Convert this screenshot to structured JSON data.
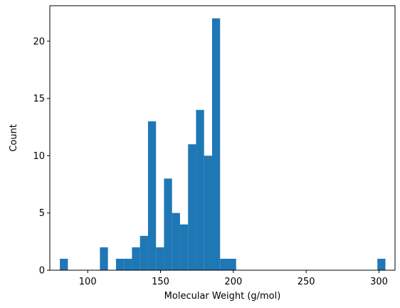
{
  "chart_data": {
    "type": "bar",
    "subtype": "histogram",
    "xlabel": "Molecular Weight (g/mol)",
    "ylabel": "Count",
    "xlim": [
      74,
      311
    ],
    "ylim": [
      0,
      23.1
    ],
    "xticks": [
      100,
      150,
      200,
      250,
      300
    ],
    "yticks": [
      0,
      5,
      10,
      15,
      20
    ],
    "grid": false,
    "color": "#1f77b4",
    "bins": [
      {
        "x0": 80.9,
        "x1": 86.4,
        "count": 1
      },
      {
        "x0": 86.4,
        "x1": 91.9,
        "count": 0
      },
      {
        "x0": 91.9,
        "x1": 97.4,
        "count": 0
      },
      {
        "x0": 97.4,
        "x1": 102.9,
        "count": 0
      },
      {
        "x0": 102.9,
        "x1": 108.4,
        "count": 0
      },
      {
        "x0": 108.4,
        "x1": 113.9,
        "count": 2
      },
      {
        "x0": 113.9,
        "x1": 119.4,
        "count": 0
      },
      {
        "x0": 119.4,
        "x1": 124.9,
        "count": 1
      },
      {
        "x0": 124.9,
        "x1": 130.4,
        "count": 1
      },
      {
        "x0": 130.4,
        "x1": 135.9,
        "count": 2
      },
      {
        "x0": 135.9,
        "x1": 141.4,
        "count": 3
      },
      {
        "x0": 141.4,
        "x1": 146.9,
        "count": 13
      },
      {
        "x0": 146.9,
        "x1": 152.4,
        "count": 2
      },
      {
        "x0": 152.4,
        "x1": 157.9,
        "count": 8
      },
      {
        "x0": 157.9,
        "x1": 163.4,
        "count": 5
      },
      {
        "x0": 163.4,
        "x1": 168.9,
        "count": 4
      },
      {
        "x0": 168.9,
        "x1": 174.4,
        "count": 11
      },
      {
        "x0": 174.4,
        "x1": 179.9,
        "count": 14
      },
      {
        "x0": 179.9,
        "x1": 185.4,
        "count": 10
      },
      {
        "x0": 185.4,
        "x1": 190.9,
        "count": 22
      },
      {
        "x0": 190.9,
        "x1": 196.4,
        "count": 1
      },
      {
        "x0": 196.4,
        "x1": 201.9,
        "count": 1
      },
      {
        "x0": 298.9,
        "x1": 304.4,
        "count": 1
      }
    ]
  }
}
